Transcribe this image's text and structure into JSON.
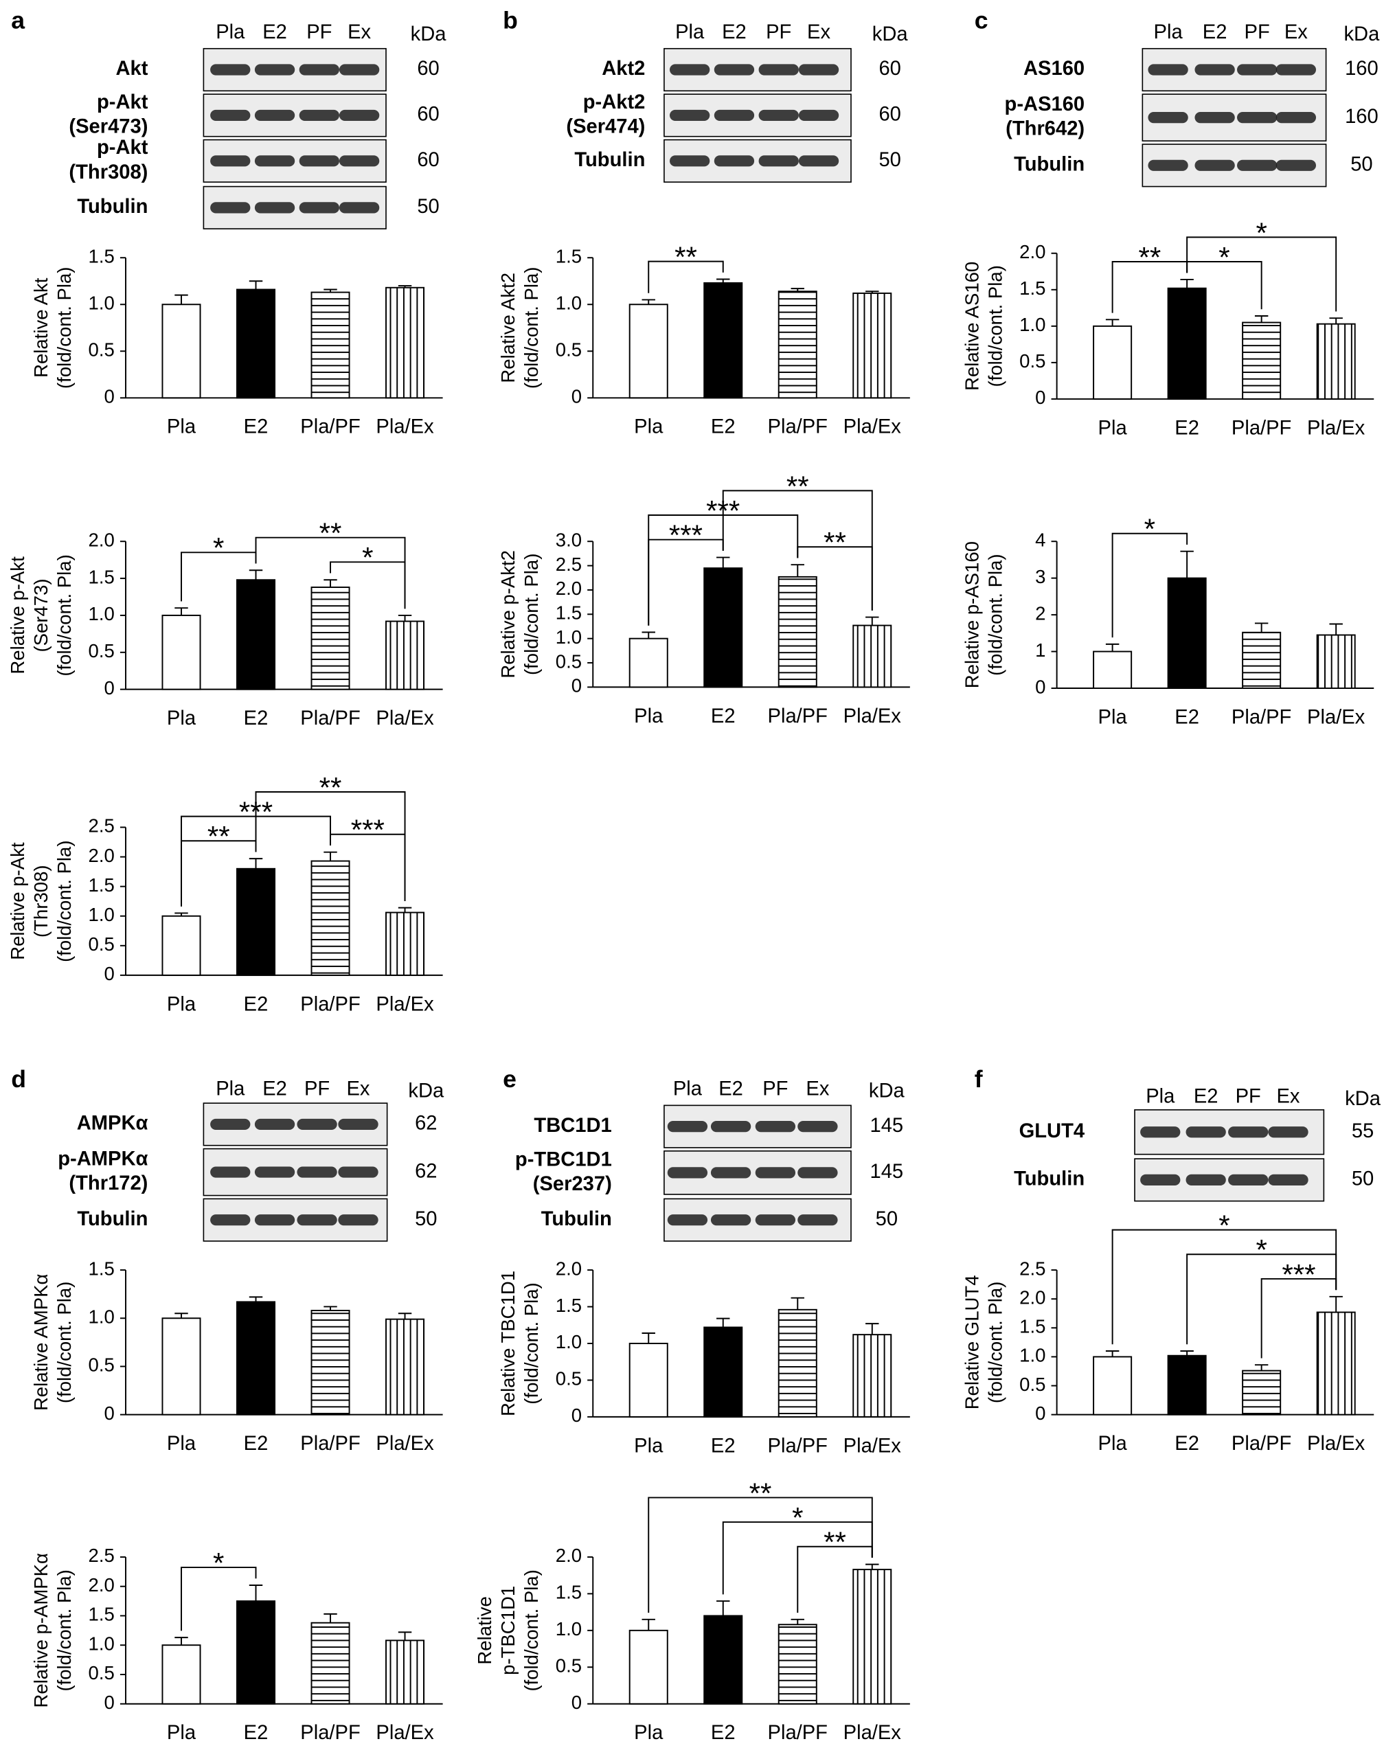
{
  "panels": [
    {
      "letter": "a",
      "lanes": [
        "Pla",
        "E2",
        "PF",
        "Ex"
      ],
      "kda_header": "kDa",
      "blot_rows": [
        {
          "label": [
            "Akt"
          ],
          "kda": 60
        },
        {
          "label": [
            "p-Akt",
            "(Ser473)"
          ],
          "kda": 60
        },
        {
          "label": [
            "p-Akt",
            "(Thr308)"
          ],
          "kda": 60
        },
        {
          "label": [
            "Tubulin"
          ],
          "kda": 50
        }
      ]
    },
    {
      "letter": "b",
      "lanes": [
        "Pla",
        "E2",
        "PF",
        "Ex"
      ],
      "kda_header": "kDa",
      "blot_rows": [
        {
          "label": [
            "Akt2"
          ],
          "kda": 60
        },
        {
          "label": [
            "p-Akt2",
            "(Ser474)"
          ],
          "kda": 60
        },
        {
          "label": [
            "Tubulin"
          ],
          "kda": 50
        }
      ]
    },
    {
      "letter": "c",
      "lanes": [
        "Pla",
        "E2",
        "PF",
        "Ex"
      ],
      "kda_header": "kDa",
      "blot_rows": [
        {
          "label": [
            "AS160"
          ],
          "kda": 160
        },
        {
          "label": [
            "p-AS160",
            "(Thr642)"
          ],
          "kda": 160
        },
        {
          "label": [
            "Tubulin"
          ],
          "kda": 50
        }
      ]
    },
    {
      "letter": "d",
      "lanes": [
        "Pla",
        "E2",
        "PF",
        "Ex"
      ],
      "kda_header": "kDa",
      "blot_rows": [
        {
          "label": [
            "AMPKα"
          ],
          "kda": 62
        },
        {
          "label": [
            "p-AMPKα",
            "(Thr172)"
          ],
          "kda": 62
        },
        {
          "label": [
            "Tubulin"
          ],
          "kda": 50
        }
      ]
    },
    {
      "letter": "e",
      "lanes": [
        "Pla",
        "E2",
        "PF",
        "Ex"
      ],
      "kda_header": "kDa",
      "blot_rows": [
        {
          "label": [
            "TBC1D1"
          ],
          "kda": 145
        },
        {
          "label": [
            "p-TBC1D1",
            "(Ser237)"
          ],
          "kda": 145
        },
        {
          "label": [
            "Tubulin"
          ],
          "kda": 50
        }
      ]
    },
    {
      "letter": "f",
      "lanes": [
        "Pla",
        "E2",
        "PF",
        "Ex"
      ],
      "kda_header": "kDa",
      "blot_rows": [
        {
          "label": [
            "GLUT4"
          ],
          "kda": 55
        },
        {
          "label": [
            "Tubulin"
          ],
          "kda": 50
        }
      ]
    }
  ],
  "bar_patterns": [
    "open",
    "filled",
    "horizontal-stripes",
    "vertical-stripes"
  ],
  "chart_data": [
    {
      "type": "bar",
      "ylabel": [
        "Relative Akt",
        "(fold/cont. Pla)"
      ],
      "categories": [
        "Pla",
        "E2",
        "Pla/PF",
        "Pla/Ex"
      ],
      "values": [
        1.0,
        1.16,
        1.13,
        1.18
      ],
      "errors": [
        0.1,
        0.09,
        0.03,
        0.02
      ],
      "ylim": [
        0,
        1.5
      ],
      "yticks": [
        0,
        0.5,
        {
          "value": 1,
          "label": "1.0"
        },
        1.5
      ],
      "significance": []
    },
    {
      "type": "bar",
      "ylabel": [
        "Relative p-Akt",
        "(Ser473)",
        "(fold/cont. Pla)"
      ],
      "categories": [
        "Pla",
        "E2",
        "Pla/PF",
        "Pla/Ex"
      ],
      "values": [
        1.0,
        1.48,
        1.38,
        0.92
      ],
      "errors": [
        0.1,
        0.13,
        0.1,
        0.08
      ],
      "ylim": [
        0,
        2
      ],
      "yticks": [
        0,
        0.5,
        {
          "value": 1,
          "label": "1.0"
        },
        1.5,
        {
          "value": 2,
          "label": "2.0"
        }
      ],
      "significance": [
        {
          "pair": [
            "Pla",
            "E2"
          ],
          "label": "*"
        },
        {
          "pair": [
            "E2",
            "Pla/Ex"
          ],
          "label": "**"
        },
        {
          "pair": [
            "Pla/PF",
            "Pla/Ex"
          ],
          "label": "*"
        }
      ]
    },
    {
      "type": "bar",
      "ylabel": [
        "Relative p-Akt",
        "(Thr308)",
        "(fold/cont. Pla)"
      ],
      "categories": [
        "Pla",
        "E2",
        "Pla/PF",
        "Pla/Ex"
      ],
      "values": [
        1.0,
        1.8,
        1.93,
        1.06
      ],
      "errors": [
        0.05,
        0.17,
        0.15,
        0.08
      ],
      "ylim": [
        0,
        2.5
      ],
      "yticks": [
        0,
        0.5,
        {
          "value": 1,
          "label": "1.0"
        },
        1.5,
        {
          "value": 2,
          "label": "2.0"
        },
        2.5
      ],
      "significance": [
        {
          "pair": [
            "Pla",
            "E2"
          ],
          "label": "**"
        },
        {
          "pair": [
            "Pla",
            "Pla/PF"
          ],
          "label": "***"
        },
        {
          "pair": [
            "Pla/PF",
            "Pla/Ex"
          ],
          "label": "***"
        },
        {
          "pair": [
            "E2",
            "Pla/Ex"
          ],
          "label": "**"
        }
      ]
    },
    {
      "type": "bar",
      "ylabel": [
        "Relative Akt2",
        "(fold/cont. Pla)"
      ],
      "categories": [
        "Pla",
        "E2",
        "Pla/PF",
        "Pla/Ex"
      ],
      "values": [
        1.0,
        1.23,
        1.14,
        1.12
      ],
      "errors": [
        0.05,
        0.04,
        0.03,
        0.02
      ],
      "ylim": [
        0,
        1.5
      ],
      "yticks": [
        0,
        0.5,
        {
          "value": 1,
          "label": "1.0"
        },
        1.5
      ],
      "significance": [
        {
          "pair": [
            "Pla",
            "E2"
          ],
          "label": "**"
        }
      ]
    },
    {
      "type": "bar",
      "ylabel": [
        "Relative p-Akt2",
        "(fold/cont. Pla)"
      ],
      "categories": [
        "Pla",
        "E2",
        "Pla/PF",
        "Pla/Ex"
      ],
      "values": [
        1.0,
        2.45,
        2.27,
        1.27
      ],
      "errors": [
        0.13,
        0.22,
        0.25,
        0.17
      ],
      "ylim": [
        0,
        3
      ],
      "yticks": [
        0,
        0.5,
        {
          "value": 1,
          "label": "1.0"
        },
        1.5,
        {
          "value": 2,
          "label": "2.0"
        },
        2.5,
        {
          "value": 3,
          "label": "3.0"
        }
      ],
      "significance": [
        {
          "pair": [
            "Pla",
            "E2"
          ],
          "label": "***"
        },
        {
          "pair": [
            "Pla",
            "Pla/PF"
          ],
          "label": "***"
        },
        {
          "pair": [
            "Pla/PF",
            "Pla/Ex"
          ],
          "label": "**"
        },
        {
          "pair": [
            "E2",
            "Pla/Ex"
          ],
          "label": "**"
        }
      ]
    },
    {
      "type": "bar",
      "ylabel": [
        "Relative AS160",
        "(fold/cont. Pla)"
      ],
      "categories": [
        "Pla",
        "E2",
        "Pla/PF",
        "Pla/Ex"
      ],
      "values": [
        1.0,
        1.52,
        1.05,
        1.03
      ],
      "errors": [
        0.09,
        0.12,
        0.09,
        0.08
      ],
      "ylim": [
        0,
        2
      ],
      "yticks": [
        0,
        0.5,
        {
          "value": 1,
          "label": "1.0"
        },
        1.5,
        {
          "value": 2,
          "label": "2.0"
        }
      ],
      "significance": [
        {
          "pair": [
            "Pla",
            "E2"
          ],
          "label": "**"
        },
        {
          "pair": [
            "E2",
            "Pla/PF"
          ],
          "label": "*"
        },
        {
          "pair": [
            "E2",
            "Pla/Ex"
          ],
          "label": "*"
        }
      ]
    },
    {
      "type": "bar",
      "ylabel": [
        "Relative p-AS160",
        "(fold/cont. Pla)"
      ],
      "categories": [
        "Pla",
        "E2",
        "Pla/PF",
        "Pla/Ex"
      ],
      "values": [
        1.0,
        3.0,
        1.52,
        1.45
      ],
      "errors": [
        0.2,
        0.73,
        0.25,
        0.3
      ],
      "ylim": [
        0,
        4
      ],
      "yticks": [
        0,
        1,
        2,
        3,
        4
      ],
      "significance": [
        {
          "pair": [
            "Pla",
            "E2"
          ],
          "label": "*"
        }
      ]
    },
    {
      "type": "bar",
      "ylabel": [
        "Relative AMPKα",
        "(fold/cont. Pla)"
      ],
      "categories": [
        "Pla",
        "E2",
        "Pla/PF",
        "Pla/Ex"
      ],
      "values": [
        1.0,
        1.17,
        1.08,
        0.99
      ],
      "errors": [
        0.05,
        0.05,
        0.04,
        0.06
      ],
      "ylim": [
        0,
        1.5
      ],
      "yticks": [
        0,
        0.5,
        {
          "value": 1,
          "label": "1.0"
        },
        1.5
      ],
      "significance": []
    },
    {
      "type": "bar",
      "ylabel": [
        "Relative p-AMPKα",
        "(fold/cont. Pla)"
      ],
      "categories": [
        "Pla",
        "E2",
        "Pla/PF",
        "Pla/Ex"
      ],
      "values": [
        1.0,
        1.75,
        1.38,
        1.08
      ],
      "errors": [
        0.13,
        0.27,
        0.15,
        0.14
      ],
      "ylim": [
        0,
        2.5
      ],
      "yticks": [
        0,
        0.5,
        {
          "value": 1,
          "label": "1.0"
        },
        1.5,
        {
          "value": 2,
          "label": "2.0"
        },
        2.5
      ],
      "significance": [
        {
          "pair": [
            "Pla",
            "E2"
          ],
          "label": "*"
        }
      ]
    },
    {
      "type": "bar",
      "ylabel": [
        "Relative TBC1D1",
        "(fold/cont. Pla)"
      ],
      "categories": [
        "Pla",
        "E2",
        "Pla/PF",
        "Pla/Ex"
      ],
      "values": [
        1.0,
        1.22,
        1.46,
        1.12
      ],
      "errors": [
        0.14,
        0.12,
        0.16,
        0.15
      ],
      "ylim": [
        0,
        2
      ],
      "yticks": [
        0,
        0.5,
        {
          "value": 1,
          "label": "1.0"
        },
        1.5,
        {
          "value": 2,
          "label": "2.0"
        }
      ],
      "significance": []
    },
    {
      "type": "bar",
      "ylabel": [
        "Relative",
        "p-TBC1D1",
        "(fold/cont. Pla)"
      ],
      "categories": [
        "Pla",
        "E2",
        "Pla/PF",
        "Pla/Ex"
      ],
      "values": [
        1.0,
        1.2,
        1.08,
        1.83
      ],
      "errors": [
        0.15,
        0.2,
        0.07,
        0.07
      ],
      "ylim": [
        0,
        2
      ],
      "yticks": [
        0,
        0.5,
        {
          "value": 1,
          "label": "1.0"
        },
        1.5,
        {
          "value": 2,
          "label": "2.0"
        }
      ],
      "significance": [
        {
          "pair": [
            "Pla",
            "Pla/Ex"
          ],
          "label": "**"
        },
        {
          "pair": [
            "E2",
            "Pla/Ex"
          ],
          "label": "*"
        },
        {
          "pair": [
            "Pla/PF",
            "Pla/Ex"
          ],
          "label": "**"
        }
      ]
    },
    {
      "type": "bar",
      "ylabel": [
        "Relative GLUT4",
        "(fold/cont. Pla)"
      ],
      "categories": [
        "Pla",
        "E2",
        "Pla/PF",
        "Pla/Ex"
      ],
      "values": [
        1.0,
        1.02,
        0.76,
        1.77
      ],
      "errors": [
        0.1,
        0.08,
        0.1,
        0.27
      ],
      "ylim": [
        0,
        2.5
      ],
      "yticks": [
        0,
        0.5,
        {
          "value": 1,
          "label": "1.0"
        },
        1.5,
        {
          "value": 2,
          "label": "2.0"
        },
        2.5
      ],
      "significance": [
        {
          "pair": [
            "Pla",
            "Pla/Ex"
          ],
          "label": "*"
        },
        {
          "pair": [
            "E2",
            "Pla/Ex"
          ],
          "label": "*"
        },
        {
          "pair": [
            "Pla/PF",
            "Pla/Ex"
          ],
          "label": "***"
        }
      ]
    }
  ]
}
